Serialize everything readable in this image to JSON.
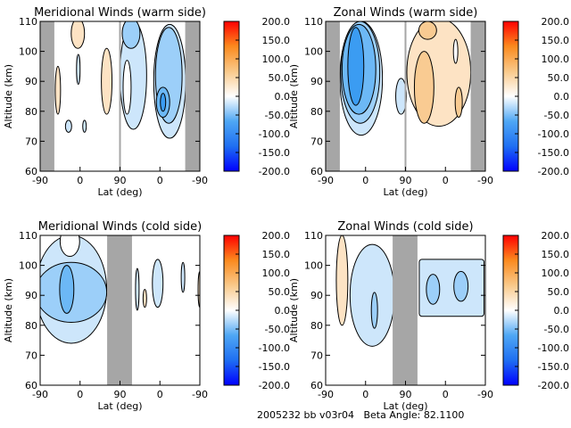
{
  "footer": {
    "run_id": "2005232 bb v03r04",
    "beta_label": "Beta Angle:",
    "beta_value": "82.1100"
  },
  "colors": {
    "-100": "#3b9cf2",
    "-75": "#6cb8f6",
    "-50": "#9ccff9",
    "-25": "#cde6fb",
    "0": "#ffffff",
    "25": "#fde3c4",
    "50": "#f9cb92",
    "nodata": "#a6a6a6",
    "scale": [
      "#0000ff",
      "#1f6ff2",
      "#4fa7f4",
      "#ffffff",
      "#f9c98a",
      "#fb8a1e",
      "#ff0000"
    ]
  },
  "chart_data": [
    {
      "type": "heatmap",
      "subtype": "contour",
      "title": "Meridional Winds (warm side)",
      "xlabel": "Lat (deg)",
      "ylabel": "Altitude (km)",
      "xticks": [
        "-90",
        "0",
        "90",
        "0",
        "-90"
      ],
      "yticks": [
        "60",
        "70",
        "80",
        "90",
        "100",
        "110"
      ],
      "ylim": [
        60,
        110
      ],
      "colorbar": {
        "ticks": [
          "200.0",
          "150.0",
          "100.0",
          "50.0",
          "0.0",
          "-50.0",
          "-100.0",
          "-150.0",
          "-200.0"
        ],
        "range": [
          -200,
          200
        ]
      },
      "nodata_track": [
        [
          0,
          32
        ],
        [
          327,
          360
        ]
      ],
      "divider_track": 180,
      "regions": [
        {
          "track": 150,
          "alt": 90,
          "dtrack": 12,
          "dalt": 11,
          "value": 25
        },
        {
          "track": 40,
          "alt": 87,
          "dtrack": 6,
          "dalt": 8,
          "value": 25
        },
        {
          "track": 85,
          "alt": 106,
          "dtrack": 15,
          "dalt": 5,
          "value": 25
        },
        {
          "track": 64,
          "alt": 75,
          "dtrack": 7,
          "dalt": 2,
          "value": -25
        },
        {
          "track": 100,
          "alt": 75,
          "dtrack": 4,
          "dalt": 2,
          "value": -25
        },
        {
          "track": 86,
          "alt": 94,
          "dtrack": 4,
          "dalt": 5,
          "value": -25
        },
        {
          "track": 210,
          "alt": 92,
          "dtrack": 30,
          "dalt": 18,
          "value": -25
        },
        {
          "track": 196,
          "alt": 88,
          "dtrack": 9,
          "dalt": 9,
          "value": 0
        },
        {
          "track": 205,
          "alt": 106,
          "dtrack": 20,
          "dalt": 5,
          "value": -50
        },
        {
          "track": 292,
          "alt": 90,
          "dtrack": 36,
          "dalt": 19,
          "value": -25
        },
        {
          "track": 290,
          "alt": 92,
          "dtrack": 30,
          "dalt": 16,
          "value": -50
        },
        {
          "track": 277,
          "alt": 83,
          "dtrack": 15,
          "dalt": 5,
          "value": -75
        },
        {
          "track": 277,
          "alt": 83,
          "dtrack": 6,
          "dalt": 3,
          "value": -100
        }
      ]
    },
    {
      "type": "heatmap",
      "subtype": "contour",
      "title": "Zonal Winds (warm side)",
      "xlabel": "Lat (deg)",
      "ylabel": "Altitude (km)",
      "xticks": [
        "-90",
        "0",
        "90",
        "0",
        "-90"
      ],
      "yticks": [
        "60",
        "70",
        "80",
        "90",
        "100",
        "110"
      ],
      "ylim": [
        60,
        110
      ],
      "colorbar": {
        "ticks": [
          "200.0",
          "150.0",
          "100.0",
          "50.0",
          "0.0",
          "-50.0",
          "-100.0",
          "-150.0",
          "-200.0"
        ],
        "range": [
          -200,
          200
        ]
      },
      "nodata_track": [
        [
          0,
          32
        ],
        [
          327,
          360
        ]
      ],
      "divider_track": 180,
      "regions": [
        {
          "track": 80,
          "alt": 91,
          "dtrack": 48,
          "dalt": 19,
          "value": -25
        },
        {
          "track": 78,
          "alt": 93,
          "dtrack": 44,
          "dalt": 17,
          "value": -50
        },
        {
          "track": 75,
          "alt": 94,
          "dtrack": 38,
          "dalt": 15,
          "value": -75
        },
        {
          "track": 68,
          "alt": 95,
          "dtrack": 18,
          "dalt": 13,
          "value": -100
        },
        {
          "track": 170,
          "alt": 85,
          "dtrack": 12,
          "dalt": 6,
          "value": -25
        },
        {
          "track": 255,
          "alt": 93,
          "dtrack": 72,
          "dalt": 18,
          "value": 25
        },
        {
          "track": 293,
          "alt": 100,
          "dtrack": 5,
          "dalt": 4,
          "value": 0
        },
        {
          "track": 222,
          "alt": 88,
          "dtrack": 22,
          "dalt": 12,
          "value": 50
        },
        {
          "track": 300,
          "alt": 83,
          "dtrack": 8,
          "dalt": 5,
          "value": 50
        },
        {
          "track": 230,
          "alt": 107,
          "dtrack": 20,
          "dalt": 3,
          "value": 50
        }
      ]
    },
    {
      "type": "heatmap",
      "subtype": "contour",
      "title": "Meridional Winds (cold side)",
      "xlabel": "Lat (deg)",
      "ylabel": "Altitude (km)",
      "xticks": [
        "-90",
        "0",
        "90",
        "0",
        "-90"
      ],
      "yticks": [
        "60",
        "70",
        "80",
        "90",
        "100",
        "110"
      ],
      "ylim": [
        60,
        110
      ],
      "colorbar": {
        "ticks": [
          "200.0",
          "150.0",
          "100.0",
          "50.0",
          "0.0",
          "-50.0",
          "-100.0",
          "-150.0",
          "-200.0"
        ],
        "range": [
          -200,
          200
        ]
      },
      "nodata_track": [
        [
          151,
          207
        ]
      ],
      "regions": [
        {
          "track": 70,
          "alt": 92,
          "dtrack": 80,
          "dalt": 18,
          "value": -25
        },
        {
          "track": 67,
          "alt": 108,
          "dtrack": 22,
          "dalt": 5,
          "value": 0
        },
        {
          "track": 70,
          "alt": 91,
          "dtrack": 80,
          "dalt": 10,
          "value": -50
        },
        {
          "track": 60,
          "alt": 92,
          "dtrack": 16,
          "dalt": 8,
          "value": -75
        },
        {
          "track": 219,
          "alt": 92,
          "dtrack": 4,
          "dalt": 7,
          "value": -25
        },
        {
          "track": 265,
          "alt": 94,
          "dtrack": 12,
          "dalt": 8,
          "value": -25
        },
        {
          "track": 322,
          "alt": 96,
          "dtrack": 4,
          "dalt": 5,
          "value": -25
        },
        {
          "track": 236,
          "alt": 89,
          "dtrack": 4,
          "dalt": 3,
          "value": 25
        },
        {
          "track": 360,
          "alt": 92,
          "dtrack": 4,
          "dalt": 6,
          "value": 25
        }
      ]
    },
    {
      "type": "heatmap",
      "subtype": "contour",
      "title": "Zonal Winds (cold side)",
      "xlabel": "Lat (deg)",
      "ylabel": "Altitude (km)",
      "xticks": [
        "-90",
        "0",
        "90",
        "0",
        "-90"
      ],
      "yticks": [
        "60",
        "70",
        "80",
        "90",
        "100",
        "110"
      ],
      "ylim": [
        60,
        110
      ],
      "colorbar": {
        "ticks": [
          "200.0",
          "150.0",
          "100.0",
          "50.0",
          "0.0",
          "-50.0",
          "-100.0",
          "-150.0",
          "-200.0"
        ],
        "range": [
          -200,
          200
        ]
      },
      "nodata_track": [
        [
          151,
          207
        ]
      ],
      "regions": [
        {
          "track": 37,
          "alt": 95,
          "dtrack": 13,
          "dalt": 15,
          "value": 25
        },
        {
          "track": 105,
          "alt": 90,
          "dtrack": 50,
          "dalt": 17,
          "value": -25
        },
        {
          "track": 110,
          "alt": 85,
          "dtrack": 7,
          "dalt": 6,
          "value": -50
        },
        {
          "track": 284,
          "alt": 92.5,
          "dtrack": 73,
          "dalt": 9.5,
          "value": -25,
          "box": true
        },
        {
          "track": 242,
          "alt": 92,
          "dtrack": 15,
          "dalt": 5,
          "value": -50
        },
        {
          "track": 305,
          "alt": 93,
          "dtrack": 16,
          "dalt": 5,
          "value": -50
        }
      ]
    }
  ]
}
